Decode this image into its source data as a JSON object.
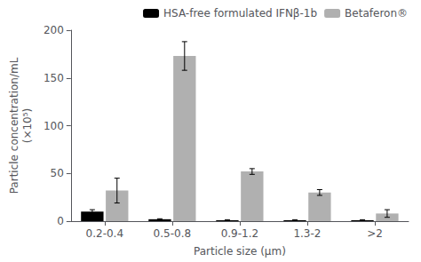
{
  "chart_data": {
    "type": "bar",
    "xlabel": "Particle size (μm)",
    "ylabel": "Particle concentration/mL\n(×10⁵)",
    "categories": [
      "0.2-0.4",
      "0.5-0.8",
      "0.9-1.2",
      "1.3-2",
      ">2"
    ],
    "series": [
      {
        "name": "HSA-free formulated IFNβ-1b",
        "color": "#000000",
        "values": [
          10,
          2,
          1,
          1,
          1
        ],
        "errors": [
          2,
          0.5,
          0.5,
          0.5,
          0.5
        ]
      },
      {
        "name": "Betaferon®",
        "color": "#b0b0b0",
        "values": [
          32,
          173,
          52,
          30,
          8
        ],
        "errors": [
          13,
          15,
          3,
          3,
          4
        ]
      }
    ],
    "ylim": [
      0,
      200
    ],
    "yticks": [
      0,
      50,
      100,
      150,
      200
    ],
    "grid": false,
    "legend": "upper right"
  }
}
